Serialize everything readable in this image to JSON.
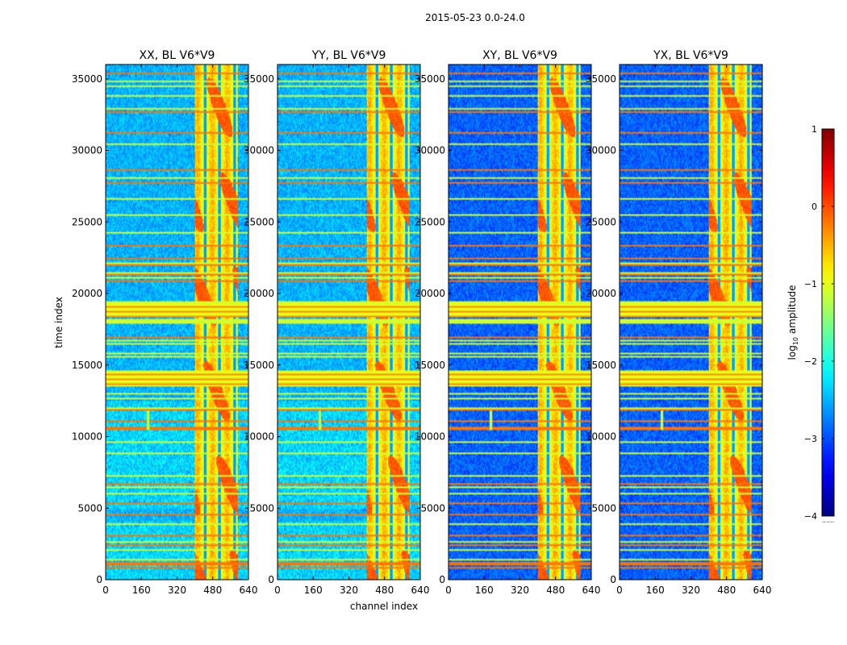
{
  "chart_data": {
    "type": "heatmap",
    "suptitle": "2015-05-23 0.0-24.0",
    "xlabel": "channel index",
    "ylabel": "time index",
    "xlim": [
      0,
      640
    ],
    "ylim": [
      0,
      36000
    ],
    "x_ticks": [
      0,
      160,
      320,
      480,
      640
    ],
    "y_ticks": [
      0,
      5000,
      10000,
      15000,
      20000,
      25000,
      30000,
      35000
    ],
    "panels": [
      {
        "title": "XX, BL V6*V9",
        "polarization": "XX",
        "base": -2.5
      },
      {
        "title": "YY, BL V6*V9",
        "polarization": "YY",
        "base": -2.5
      },
      {
        "title": "XY, BL V6*V9",
        "polarization": "XY",
        "base": -2.9
      },
      {
        "title": "YX, BL V6*V9",
        "polarization": "YX",
        "base": -2.9
      }
    ],
    "colorbar": {
      "label": "log",
      "label_sub": "10",
      "label_rest": " amplitude",
      "range": [
        -4,
        1
      ],
      "ticks": [
        1,
        0,
        -1,
        -2,
        -3,
        -4
      ],
      "tick_labels": [
        "1",
        "0",
        "−1",
        "−2",
        "−3",
        "−4"
      ],
      "colormap": "jet",
      "under_text": "......"
    },
    "rfi_band_channels": [
      400,
      590
    ],
    "strong_time_bands": [
      [
        13500,
        14600
      ],
      [
        18300,
        19400
      ]
    ],
    "point_source": {
      "channel": 190,
      "time": [
        10500,
        11800
      ]
    }
  }
}
